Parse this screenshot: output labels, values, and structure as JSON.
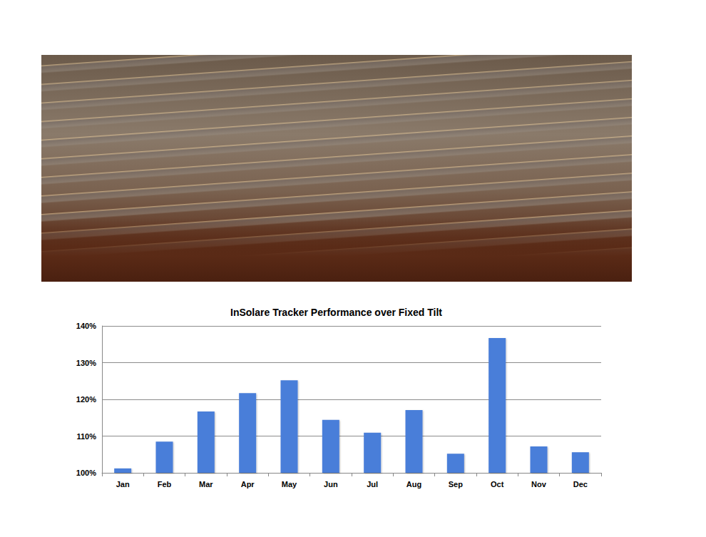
{
  "chart_data": {
    "type": "bar",
    "title": "InSolare Tracker Performance over Fixed Tilt",
    "categories": [
      "Jan",
      "Feb",
      "Mar",
      "Apr",
      "May",
      "Jun",
      "Jul",
      "Aug",
      "Sep",
      "Oct",
      "Nov",
      "Dec"
    ],
    "values": [
      101.2,
      108.5,
      116.7,
      121.7,
      125.2,
      114.4,
      110.9,
      117.1,
      105.2,
      136.7,
      107.2,
      105.6
    ],
    "color": "#4a7ed9",
    "ylim": [
      100,
      140
    ],
    "yticks": [
      {
        "value": 100,
        "label": "100%"
      },
      {
        "value": 110,
        "label": "110%"
      },
      {
        "value": 120,
        "label": "120%"
      },
      {
        "value": 130,
        "label": "130%"
      },
      {
        "value": 140,
        "label": "140%"
      }
    ],
    "grid": true
  }
}
